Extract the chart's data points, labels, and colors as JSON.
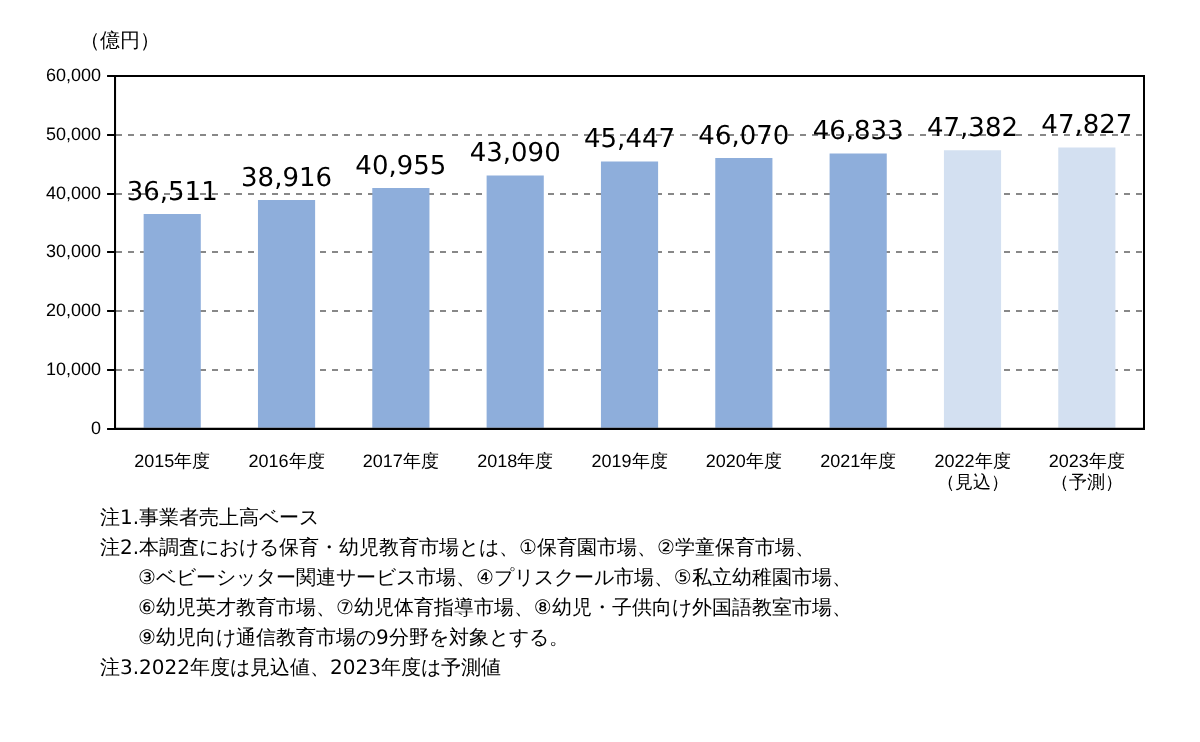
{
  "chart_data": {
    "type": "bar",
    "ylabel": "（億円）",
    "categories": [
      "2015年度",
      "2016年度",
      "2017年度",
      "2018年度",
      "2019年度",
      "2020年度",
      "2021年度",
      "2022年度（見込）",
      "2023年度（予測）"
    ],
    "values": [
      36511,
      38916,
      40955,
      43090,
      45447,
      46070,
      46833,
      47382,
      47827
    ],
    "value_labels": [
      "36,511",
      "38,916",
      "40,955",
      "43,090",
      "45,447",
      "46,070",
      "46,833",
      "47,382",
      "47,827"
    ],
    "colors": [
      "#8eaedb",
      "#8eaedb",
      "#8eaedb",
      "#8eaedb",
      "#8eaedb",
      "#8eaedb",
      "#8eaedb",
      "#d3e0f1",
      "#d3e0f1"
    ],
    "ylim": [
      0,
      60000
    ],
    "yticks": [
      {
        "value": 0,
        "label": "0"
      },
      {
        "value": 10000,
        "label": "10,000"
      },
      {
        "value": 20000,
        "label": "20,000"
      },
      {
        "value": 30000,
        "label": "30,000"
      },
      {
        "value": 40000,
        "label": "40,000"
      },
      {
        "value": 50000,
        "label": "50,000"
      },
      {
        "value": 60000,
        "label": "60,000"
      }
    ],
    "grid": "y",
    "annotations": [
      "注1.事業者売上高ベース",
      "注2.本調査における保育・幼児教育市場とは、①保育園市場、②学童保育市場、\n③ベビーシッター関連サービス市場、④プリスクール市場、⑤私立幼稚園市場、\n⑥幼児英才教育市場、⑦幼児体育指導市場、⑧幼児・子供向け外国語教室市場、\n⑨幼児向け通信教育市場の9分野を対象とする。",
      "注3.2022年度は見込値、2023年度は予測値"
    ]
  }
}
